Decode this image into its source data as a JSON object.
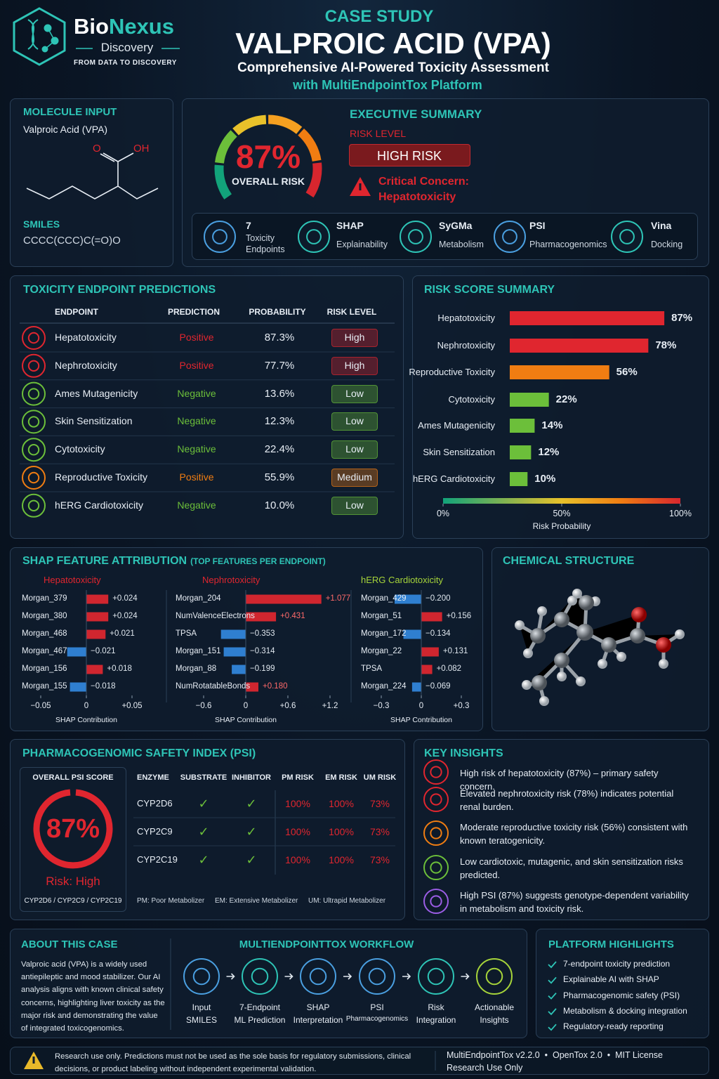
{
  "header": {
    "brand_1": "Bio",
    "brand_2": "Nexus",
    "brand_sub": "Discovery",
    "tagline": "FROM DATA TO DISCOVERY",
    "kicker": "CASE STUDY",
    "title": "VALPROIC ACID (VPA)",
    "subtitle": "Comprehensive AI-Powered Toxicity Assessment",
    "subtitle_2": "with MultiEndpointTox Platform"
  },
  "molecule_input": {
    "heading": "MOLECULE INPUT",
    "name": "Valproic Acid (VPA)",
    "atom_o": "O",
    "atom_oh": "OH",
    "smiles_label": "SMILES",
    "smiles": "CCCC(CCC)C(=O)O"
  },
  "executive_summary": {
    "heading": "EXECUTIVE SUMMARY",
    "overall_risk": "87%",
    "overall_risk_caption": "OVERALL RISK",
    "risk_level_label": "RISK LEVEL",
    "risk_level": "HIGH RISK",
    "critical_concern": "Critical Concern:",
    "critical_endpoint": "Hepatotoxicity",
    "features": [
      {
        "title": "7",
        "text": "Toxicity Endpoints"
      },
      {
        "title": "SHAP",
        "text": "Explainability"
      },
      {
        "title": "SyGMa",
        "text": "Metabolism"
      },
      {
        "title": "PSI",
        "text": "Pharmacogenomics"
      },
      {
        "title": "Vina",
        "text": "Docking"
      }
    ]
  },
  "toxicity": {
    "heading": "TOXICITY ENDPOINT PREDICTIONS",
    "columns": [
      "ENDPOINT",
      "PREDICTION",
      "PROBABILITY",
      "RISK LEVEL"
    ],
    "rows": [
      {
        "endpoint": "Hepatotoxicity",
        "prediction": "Positive",
        "probability": "87.3%",
        "risk_level": "High",
        "color": "#e0262f"
      },
      {
        "endpoint": "Nephrotoxicity",
        "prediction": "Positive",
        "probability": "77.7%",
        "risk_level": "High",
        "color": "#e0262f"
      },
      {
        "endpoint": "Ames Mutagenicity",
        "prediction": "Negative",
        "probability": "13.6%",
        "risk_level": "Low",
        "color": "#6cbf3a"
      },
      {
        "endpoint": "Skin Sensitization",
        "prediction": "Negative",
        "probability": "12.3%",
        "risk_level": "Low",
        "color": "#6cbf3a"
      },
      {
        "endpoint": "Cytotoxicity",
        "prediction": "Negative",
        "probability": "22.4%",
        "risk_level": "Low",
        "color": "#6cbf3a"
      },
      {
        "endpoint": "Reproductive Toxicity",
        "prediction": "Positive",
        "probability": "55.9%",
        "risk_level": "Medium",
        "color": "#f07d12"
      },
      {
        "endpoint": "hERG Cardiotoxicity",
        "prediction": "Negative",
        "probability": "10.0%",
        "risk_level": "Low",
        "color": "#6cbf3a"
      }
    ]
  },
  "risk_summary": {
    "type": "bar",
    "heading": "RISK SCORE SUMMARY",
    "categories": [
      "Hepatotoxicity",
      "Nephrotoxicity",
      "Reproductive Toxicity",
      "Cytotoxicity",
      "Ames Mutagenicity",
      "Skin Sensitization",
      "hERG Cardiotoxicity"
    ],
    "values": [
      87,
      78,
      56,
      22,
      14,
      12,
      10
    ],
    "value_labels": [
      "87%",
      "78%",
      "56%",
      "22%",
      "14%",
      "12%",
      "10%"
    ],
    "colors": [
      "#e0262f",
      "#e0262f",
      "#f07d12",
      "#6cbf3a",
      "#6cbf3a",
      "#6cbf3a",
      "#6cbf3a"
    ],
    "xlim": [
      0,
      100
    ],
    "xticks": [
      {
        "value": 0,
        "label": "0%"
      },
      {
        "value": 50,
        "label": "50%"
      },
      {
        "value": 100,
        "label": "100%"
      }
    ],
    "xlabel": "Risk Probability"
  },
  "shap": {
    "heading": "SHAP FEATURE ATTRIBUTION",
    "heading_note": "(TOP FEATURES PER ENDPOINT)",
    "pos_color": "#d0262f",
    "neg_color": "#2f7fd0",
    "charts": [
      {
        "type": "bar",
        "title": "Hepatotoxicity",
        "title_color": "#e0262f",
        "features": [
          "Morgan_379",
          "Morgan_380",
          "Morgan_468",
          "Morgan_467",
          "Morgan_156",
          "Morgan_155"
        ],
        "values": [
          0.024,
          0.024,
          0.021,
          -0.021,
          0.018,
          -0.018
        ],
        "value_labels": [
          "+0.024",
          "+0.024",
          "+0.021",
          "−0.021",
          "+0.018",
          "−0.018"
        ],
        "xlim": [
          -0.05,
          0.05
        ],
        "xticks": [
          {
            "value": -0.05,
            "label": "−0.05"
          },
          0,
          {
            "value": 0.05,
            "label": "+0.05"
          }
        ],
        "xlabel": "SHAP Contribution"
      },
      {
        "type": "bar",
        "title": "Nephrotoxicity",
        "title_color": "#e0262f",
        "features": [
          "Morgan_204",
          "NumValenceElectrons",
          "TPSA",
          "Morgan_151",
          "Morgan_88",
          "NumRotatableBonds"
        ],
        "values": [
          1.077,
          0.431,
          -0.353,
          -0.314,
          -0.199,
          0.18
        ],
        "value_labels": [
          "+1.077",
          "+0.431",
          "−0.353",
          "−0.314",
          "−0.199",
          "+0.180"
        ],
        "xlim": [
          -0.6,
          1.2
        ],
        "xticks": [
          {
            "value": -0.6,
            "label": "−0.6"
          },
          0,
          {
            "value": 0.6,
            "label": "+0.6"
          },
          {
            "value": 1.2,
            "label": "+1.2"
          }
        ],
        "xlabel": "SHAP Contribution"
      },
      {
        "type": "bar",
        "title": "hERG Cardiotoxicity",
        "title_color": "#a6d43a",
        "features": [
          "Morgan_429",
          "Morgan_51",
          "Morgan_172",
          "Morgan_22",
          "TPSA",
          "Morgan_224"
        ],
        "values": [
          -0.2,
          0.156,
          -0.134,
          0.131,
          0.082,
          -0.069
        ],
        "value_labels": [
          "−0.200",
          "+0.156",
          "−0.134",
          "+0.131",
          "+0.082",
          "−0.069"
        ],
        "xlim": [
          -0.3,
          0.3
        ],
        "xticks": [
          {
            "value": -0.3,
            "label": "−0.3"
          },
          0,
          {
            "value": 0.3,
            "label": "+0.3"
          }
        ],
        "xlabel": "SHAP Contribution"
      }
    ]
  },
  "structure": {
    "heading": "CHEMICAL STRUCTURE"
  },
  "psi": {
    "heading": "PHARMACOGENOMIC SAFETY INDEX (PSI)",
    "score_label": "OVERALL PSI SCORE",
    "score": "87%",
    "risk": "Risk: High",
    "enzymes": "CYP2D6 / CYP2C9 / CYP2C19",
    "columns": [
      "ENZYME",
      "SUBSTRATE",
      "INHIBITOR",
      "PM RISK",
      "EM RISK",
      "UM RISK"
    ],
    "rows": [
      [
        "CYP2D6",
        "✓",
        "✓",
        "100%",
        "100%",
        "73%"
      ],
      [
        "CYP2C9",
        "✓",
        "✓",
        "100%",
        "100%",
        "73%"
      ],
      [
        "CYP2C19",
        "✓",
        "✓",
        "100%",
        "100%",
        "73%"
      ]
    ],
    "notes": [
      "PM: Poor Metabolizer",
      "EM: Extensive Metabolizer",
      "UM: Ultrapid Metabolizer"
    ]
  },
  "insights": {
    "heading": "KEY INSIGHTS",
    "items": [
      "High risk of hepatotoxicity (87%) – primary safety concern.",
      "Elevated nephrotoxicity risk (78%) indicates potential renal burden.",
      "Moderate reproductive toxicity risk (56%) consistent with known teratogenicity.",
      "Low cardiotoxic, mutagenic, and skin sensitization risks predicted.",
      "High PSI (87%) suggests genotype-dependent variability in metabolism and toxicity risk."
    ]
  },
  "about": {
    "heading": "ABOUT THIS CASE",
    "text": "Valproic acid (VPA) is a widely used antiepileptic and mood stabilizer. Our AI analysis aligns with known clinical safety concerns, highlighting liver toxicity as the major risk and demonstrating the value of integrated toxicogenomics."
  },
  "workflow": {
    "heading": "MULTIENDPOINTTOX WORKFLOW",
    "steps": [
      {
        "line1": "Input",
        "line2": "SMILES"
      },
      {
        "line1": "7-Endpoint",
        "line2": "ML Prediction"
      },
      {
        "line1": "SHAP",
        "line2": "Interpretation"
      },
      {
        "line1": "PSI",
        "line2": "Pharmacogenomics"
      },
      {
        "line1": "Risk",
        "line2": "Integration"
      },
      {
        "line1": "Actionable",
        "line2": "Insights"
      }
    ]
  },
  "highlights": {
    "heading": "PLATFORM HIGHLIGHTS",
    "items": [
      "7-endpoint toxicity prediction",
      "Explainable AI with SHAP",
      "Pharmacogenomic safety (PSI)",
      "Metabolism & docking integration",
      "Regulatory-ready reporting"
    ]
  },
  "footer": {
    "disclaimer": "Research use only. Predictions must not be used as the sole basis for regulatory submissions, clinical decisions, or product labeling without independent experimental validation.",
    "version": "MultiEndpointTox v2.2.0  •  OpenTox 2.0  •  MIT License",
    "usage": "Research Use Only"
  }
}
